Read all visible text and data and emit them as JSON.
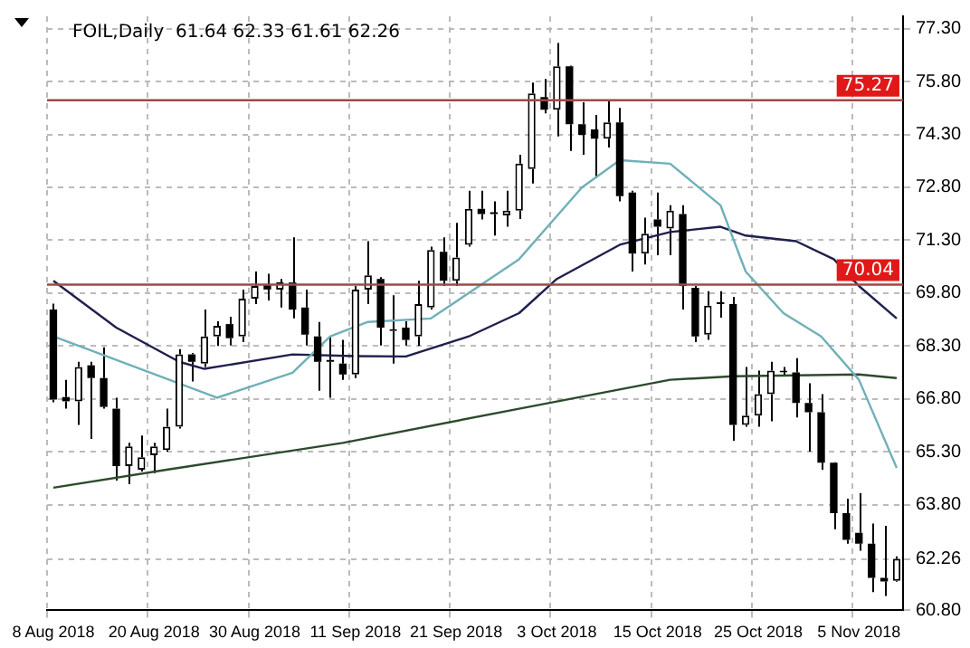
{
  "chart_data": {
    "type": "candlestick",
    "title": "FOIL,Daily  61.64 62.33 61.61 62.26",
    "categories": [
      "8 Aug 2018",
      null,
      null,
      null,
      null,
      null,
      null,
      null,
      "20 Aug 2018",
      null,
      null,
      null,
      null,
      null,
      null,
      null,
      "30 Aug 2018",
      null,
      null,
      null,
      null,
      null,
      null,
      null,
      "11 Sep 2018",
      null,
      null,
      null,
      null,
      null,
      null,
      null,
      "21 Sep 2018",
      null,
      null,
      null,
      null,
      null,
      null,
      null,
      "3 Oct 2018",
      null,
      null,
      null,
      null,
      null,
      null,
      null,
      "15 Oct 2018",
      null,
      null,
      null,
      null,
      null,
      null,
      null,
      "25 Oct 2018",
      null,
      null,
      null,
      null,
      null,
      null,
      null,
      "5 Nov 2018",
      null,
      null,
      null
    ],
    "ohlc": [
      [
        69.33,
        69.5,
        66.7,
        66.78
      ],
      [
        66.85,
        67.34,
        66.52,
        66.73
      ],
      [
        66.73,
        67.85,
        66.06,
        67.7
      ],
      [
        67.75,
        67.85,
        65.66,
        67.39
      ],
      [
        67.39,
        68.26,
        66.52,
        66.57
      ],
      [
        66.52,
        66.83,
        64.48,
        64.89
      ],
      [
        64.89,
        65.55,
        64.38,
        65.45
      ],
      [
        64.79,
        65.76,
        64.74,
        65.14
      ],
      [
        65.2,
        65.55,
        64.69,
        65.45
      ],
      [
        65.35,
        66.52,
        65.3,
        66.01
      ],
      [
        66.01,
        68.21,
        65.96,
        68.06
      ],
      [
        68.06,
        68.1,
        67.29,
        67.85
      ],
      [
        67.8,
        69.33,
        67.7,
        68.57
      ],
      [
        68.57,
        69.0,
        68.3,
        68.87
      ],
      [
        68.92,
        69.13,
        68.31,
        68.52
      ],
      [
        68.57,
        69.9,
        68.41,
        69.64
      ],
      [
        69.64,
        70.41,
        69.49,
        70.0
      ],
      [
        70.05,
        70.35,
        69.59,
        69.9
      ],
      [
        69.9,
        70.2,
        69.39,
        70.1
      ],
      [
        70.1,
        71.38,
        69.08,
        69.33
      ],
      [
        69.39,
        69.9,
        68.31,
        68.62
      ],
      [
        68.57,
        68.98,
        67.03,
        67.85
      ],
      [
        67.9,
        68.57,
        66.83,
        67.85
      ],
      [
        67.8,
        68.47,
        67.34,
        67.49
      ],
      [
        67.49,
        70.0,
        67.39,
        69.9
      ],
      [
        69.9,
        71.27,
        69.49,
        70.3
      ],
      [
        70.2,
        70.25,
        68.31,
        68.82
      ],
      [
        68.72,
        69.74,
        67.8,
        68.77
      ],
      [
        68.82,
        69.0,
        68.31,
        68.47
      ],
      [
        68.57,
        70.15,
        68.3,
        69.49
      ],
      [
        69.39,
        71.12,
        69.33,
        71.02
      ],
      [
        70.97,
        71.38,
        70.0,
        70.15
      ],
      [
        70.15,
        71.79,
        70.0,
        70.81
      ],
      [
        71.17,
        72.7,
        71.12,
        72.19
      ],
      [
        72.19,
        72.7,
        71.89,
        72.04
      ],
      [
        72.06,
        72.4,
        71.43,
        72.04
      ],
      [
        72.0,
        72.7,
        71.68,
        72.14
      ],
      [
        72.14,
        73.72,
        71.9,
        73.47
      ],
      [
        73.32,
        75.77,
        72.91,
        75.46
      ],
      [
        75.36,
        75.87,
        74.9,
        75.0
      ],
      [
        75.0,
        76.89,
        74.24,
        76.23
      ],
      [
        76.23,
        76.25,
        73.83,
        74.59
      ],
      [
        74.59,
        75.21,
        73.72,
        74.29
      ],
      [
        74.44,
        74.85,
        73.06,
        74.18
      ],
      [
        74.18,
        75.26,
        73.93,
        74.64
      ],
      [
        74.64,
        75.05,
        72.4,
        72.55
      ],
      [
        72.65,
        72.7,
        70.41,
        70.92
      ],
      [
        70.92,
        71.94,
        70.61,
        71.48
      ],
      [
        71.89,
        72.65,
        70.87,
        71.68
      ],
      [
        71.63,
        72.29,
        70.87,
        72.14
      ],
      [
        72.04,
        72.29,
        69.33,
        70.0
      ],
      [
        69.95,
        70.0,
        68.41,
        68.57
      ],
      [
        68.62,
        69.85,
        68.47,
        69.44
      ],
      [
        69.54,
        69.85,
        69.1,
        69.49
      ],
      [
        69.49,
        69.69,
        65.61,
        66.06
      ],
      [
        66.06,
        67.7,
        66.01,
        66.32
      ],
      [
        66.32,
        67.6,
        66.01,
        66.93
      ],
      [
        66.93,
        67.85,
        66.16,
        67.6
      ],
      [
        67.55,
        67.7,
        67.45,
        67.55
      ],
      [
        67.55,
        67.95,
        66.27,
        66.68
      ],
      [
        66.68,
        67.24,
        65.3,
        66.42
      ],
      [
        66.42,
        66.93,
        64.79,
        64.99
      ],
      [
        64.99,
        65.0,
        63.1,
        63.56
      ],
      [
        63.56,
        63.97,
        62.69,
        62.8
      ],
      [
        63.0,
        64.12,
        62.49,
        62.69
      ],
      [
        62.69,
        63.26,
        61.32,
        61.72
      ],
      [
        61.72,
        63.2,
        61.21,
        61.62
      ],
      [
        61.64,
        62.33,
        61.61,
        62.26
      ]
    ],
    "series": [
      {
        "type": "line",
        "color": "#6fb0b8",
        "values": [
          68.57,
          null,
          null,
          null,
          null,
          null,
          null,
          null,
          null,
          null,
          null,
          null,
          null,
          66.83,
          null,
          null,
          null,
          null,
          null,
          67.54,
          null,
          null,
          68.57,
          null,
          null,
          68.98,
          null,
          null,
          null,
          null,
          69.08,
          null,
          null,
          null,
          null,
          null,
          null,
          70.76,
          null,
          null,
          null,
          null,
          72.8,
          null,
          null,
          73.57,
          null,
          null,
          null,
          73.47,
          null,
          null,
          null,
          72.29,
          null,
          70.41,
          null,
          null,
          69.23,
          null,
          null,
          68.57,
          null,
          null,
          67.34,
          null,
          null,
          64.84
        ]
      },
      {
        "type": "line",
        "color": "#1f1f4f",
        "values": [
          70.15,
          null,
          null,
          null,
          null,
          68.82,
          null,
          null,
          null,
          null,
          67.85,
          null,
          67.65,
          null,
          null,
          null,
          null,
          null,
          null,
          68.06,
          null,
          null,
          null,
          null,
          68.01,
          null,
          null,
          null,
          68.0,
          null,
          null,
          null,
          null,
          68.57,
          null,
          null,
          null,
          69.23,
          null,
          null,
          70.2,
          null,
          null,
          null,
          null,
          71.17,
          null,
          null,
          null,
          71.53,
          null,
          null,
          null,
          71.68,
          null,
          71.43,
          null,
          null,
          null,
          71.27,
          null,
          null,
          70.76,
          null,
          70.0,
          null,
          null,
          69.08
        ]
      },
      {
        "type": "line",
        "color": "#2d4a2d",
        "values": [
          64.28,
          null,
          null,
          null,
          null,
          null,
          null,
          null,
          null,
          64.79,
          null,
          null,
          null,
          null,
          null,
          null,
          null,
          null,
          null,
          null,
          null,
          null,
          null,
          65.55,
          null,
          null,
          null,
          null,
          null,
          null,
          null,
          null,
          null,
          null,
          null,
          null,
          null,
          66.52,
          null,
          null,
          null,
          null,
          null,
          null,
          null,
          null,
          null,
          null,
          null,
          67.34,
          null,
          null,
          null,
          null,
          67.44,
          null,
          null,
          null,
          null,
          null,
          null,
          null,
          null,
          null,
          67.49,
          null,
          null,
          67.39
        ]
      }
    ],
    "ylim": [
      60.8,
      77.65
    ],
    "yticks": [
      {
        "value": 60.8,
        "label": "60.80"
      },
      {
        "value": 62.26,
        "label": "62.26"
      },
      {
        "value": 63.8,
        "label": "63.80"
      },
      {
        "value": 65.3,
        "label": "65.30"
      },
      {
        "value": 66.8,
        "label": "66.80"
      },
      {
        "value": 68.3,
        "label": "68.30"
      },
      {
        "value": 69.8,
        "label": "69.80"
      },
      {
        "value": 71.3,
        "label": "71.30"
      },
      {
        "value": 72.8,
        "label": "72.80"
      },
      {
        "value": 74.3,
        "label": "74.30"
      },
      {
        "value": 75.8,
        "label": "75.80"
      },
      {
        "value": 77.3,
        "label": "77.30"
      }
    ],
    "ref_lines": [
      {
        "axis": "y",
        "value": 75.27,
        "label": "75.27",
        "color": "#a04848"
      },
      {
        "axis": "y",
        "value": 70.04,
        "label": "70.04",
        "color": "#a04848"
      }
    ],
    "grid": true,
    "legend": false
  }
}
